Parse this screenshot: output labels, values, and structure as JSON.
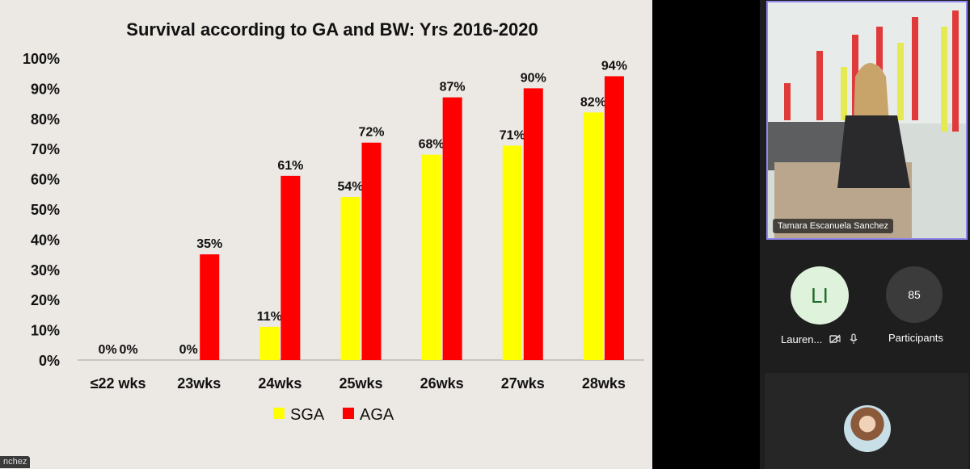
{
  "chart_data": {
    "type": "bar",
    "title": "Survival according to GA and BW: Yrs 2016-2020",
    "categories": [
      "≤22 wks",
      "23wks",
      "24wks",
      "25wks",
      "26wks",
      "27wks",
      "28wks"
    ],
    "series": [
      {
        "name": "SGA",
        "color": "#ffff00",
        "values": [
          0,
          0,
          11,
          54,
          68,
          71,
          82
        ],
        "labels": [
          "0%",
          "0%",
          "11%",
          "54%",
          "68%",
          "71%",
          "82%"
        ]
      },
      {
        "name": "AGA",
        "color": "#ff0000",
        "values": [
          0,
          35,
          61,
          72,
          87,
          90,
          94
        ],
        "labels": [
          "0%",
          "35%",
          "61%",
          "72%",
          "87%",
          "90%",
          "94%"
        ]
      }
    ],
    "ylim": [
      0,
      100
    ],
    "yticks": [
      "0%",
      "10%",
      "20%",
      "30%",
      "40%",
      "50%",
      "60%",
      "70%",
      "80%",
      "90%",
      "100%"
    ],
    "legend_position": "bottom",
    "grid": false
  },
  "presenter_tag": "nchez",
  "video": {
    "name": "Tamara Escanuela Sanchez"
  },
  "participant_li": {
    "initials": "LI",
    "name": "Lauren..."
  },
  "participants": {
    "count": "85",
    "label": "Participants"
  },
  "icons": [
    "video-off-icon",
    "mic-icon"
  ]
}
